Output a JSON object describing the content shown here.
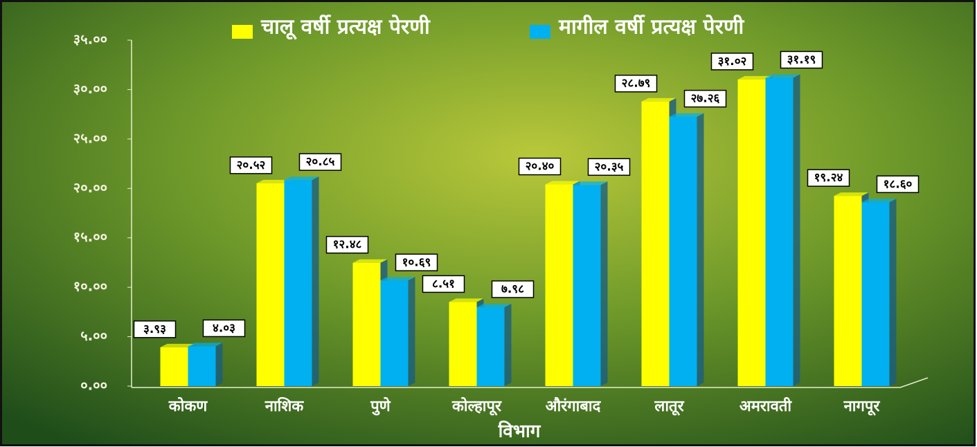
{
  "chart_data": {
    "type": "bar",
    "x_label": "विभाग",
    "categories": [
      "कोकण",
      "नाशिक",
      "पुणे",
      "कोल्हापूर",
      "औरंगाबाद",
      "लातूर",
      "अमरावती",
      "नागपूर"
    ],
    "series": [
      {
        "name": "चालू वर्षी प्रत्यक्ष पेरणी",
        "color": "#ffff00",
        "values": [
          3.93,
          20.52,
          12.48,
          8.51,
          20.4,
          28.79,
          31.02,
          19.24
        ],
        "value_labels": [
          "३.९३",
          "२०.५२",
          "१२.४८",
          "८.५१",
          "२०.४०",
          "२८.७९",
          "३१.०२",
          "१९.२४"
        ]
      },
      {
        "name": "मागील वर्षी प्रत्यक्ष पेरणी",
        "color": "#00b0f0",
        "values": [
          4.03,
          20.85,
          10.69,
          7.98,
          20.35,
          27.26,
          31.19,
          18.6
        ],
        "value_labels": [
          "४.०३",
          "२०.८५",
          "१०.६९",
          "७.९८",
          "२०.३५",
          "२७.२६",
          "३१.१९",
          "१८.६०"
        ]
      }
    ],
    "ylim": [
      0,
      35
    ],
    "yticks": [
      {
        "value": 0,
        "label": "०.००"
      },
      {
        "value": 5,
        "label": "५.००"
      },
      {
        "value": 10,
        "label": "१०.००"
      },
      {
        "value": 15,
        "label": "१५.००"
      },
      {
        "value": 20,
        "label": "२०.००"
      },
      {
        "value": 25,
        "label": "२५.००"
      },
      {
        "value": 30,
        "label": "३०.००"
      },
      {
        "value": 35,
        "label": "३५.००"
      }
    ],
    "legend": "top"
  }
}
